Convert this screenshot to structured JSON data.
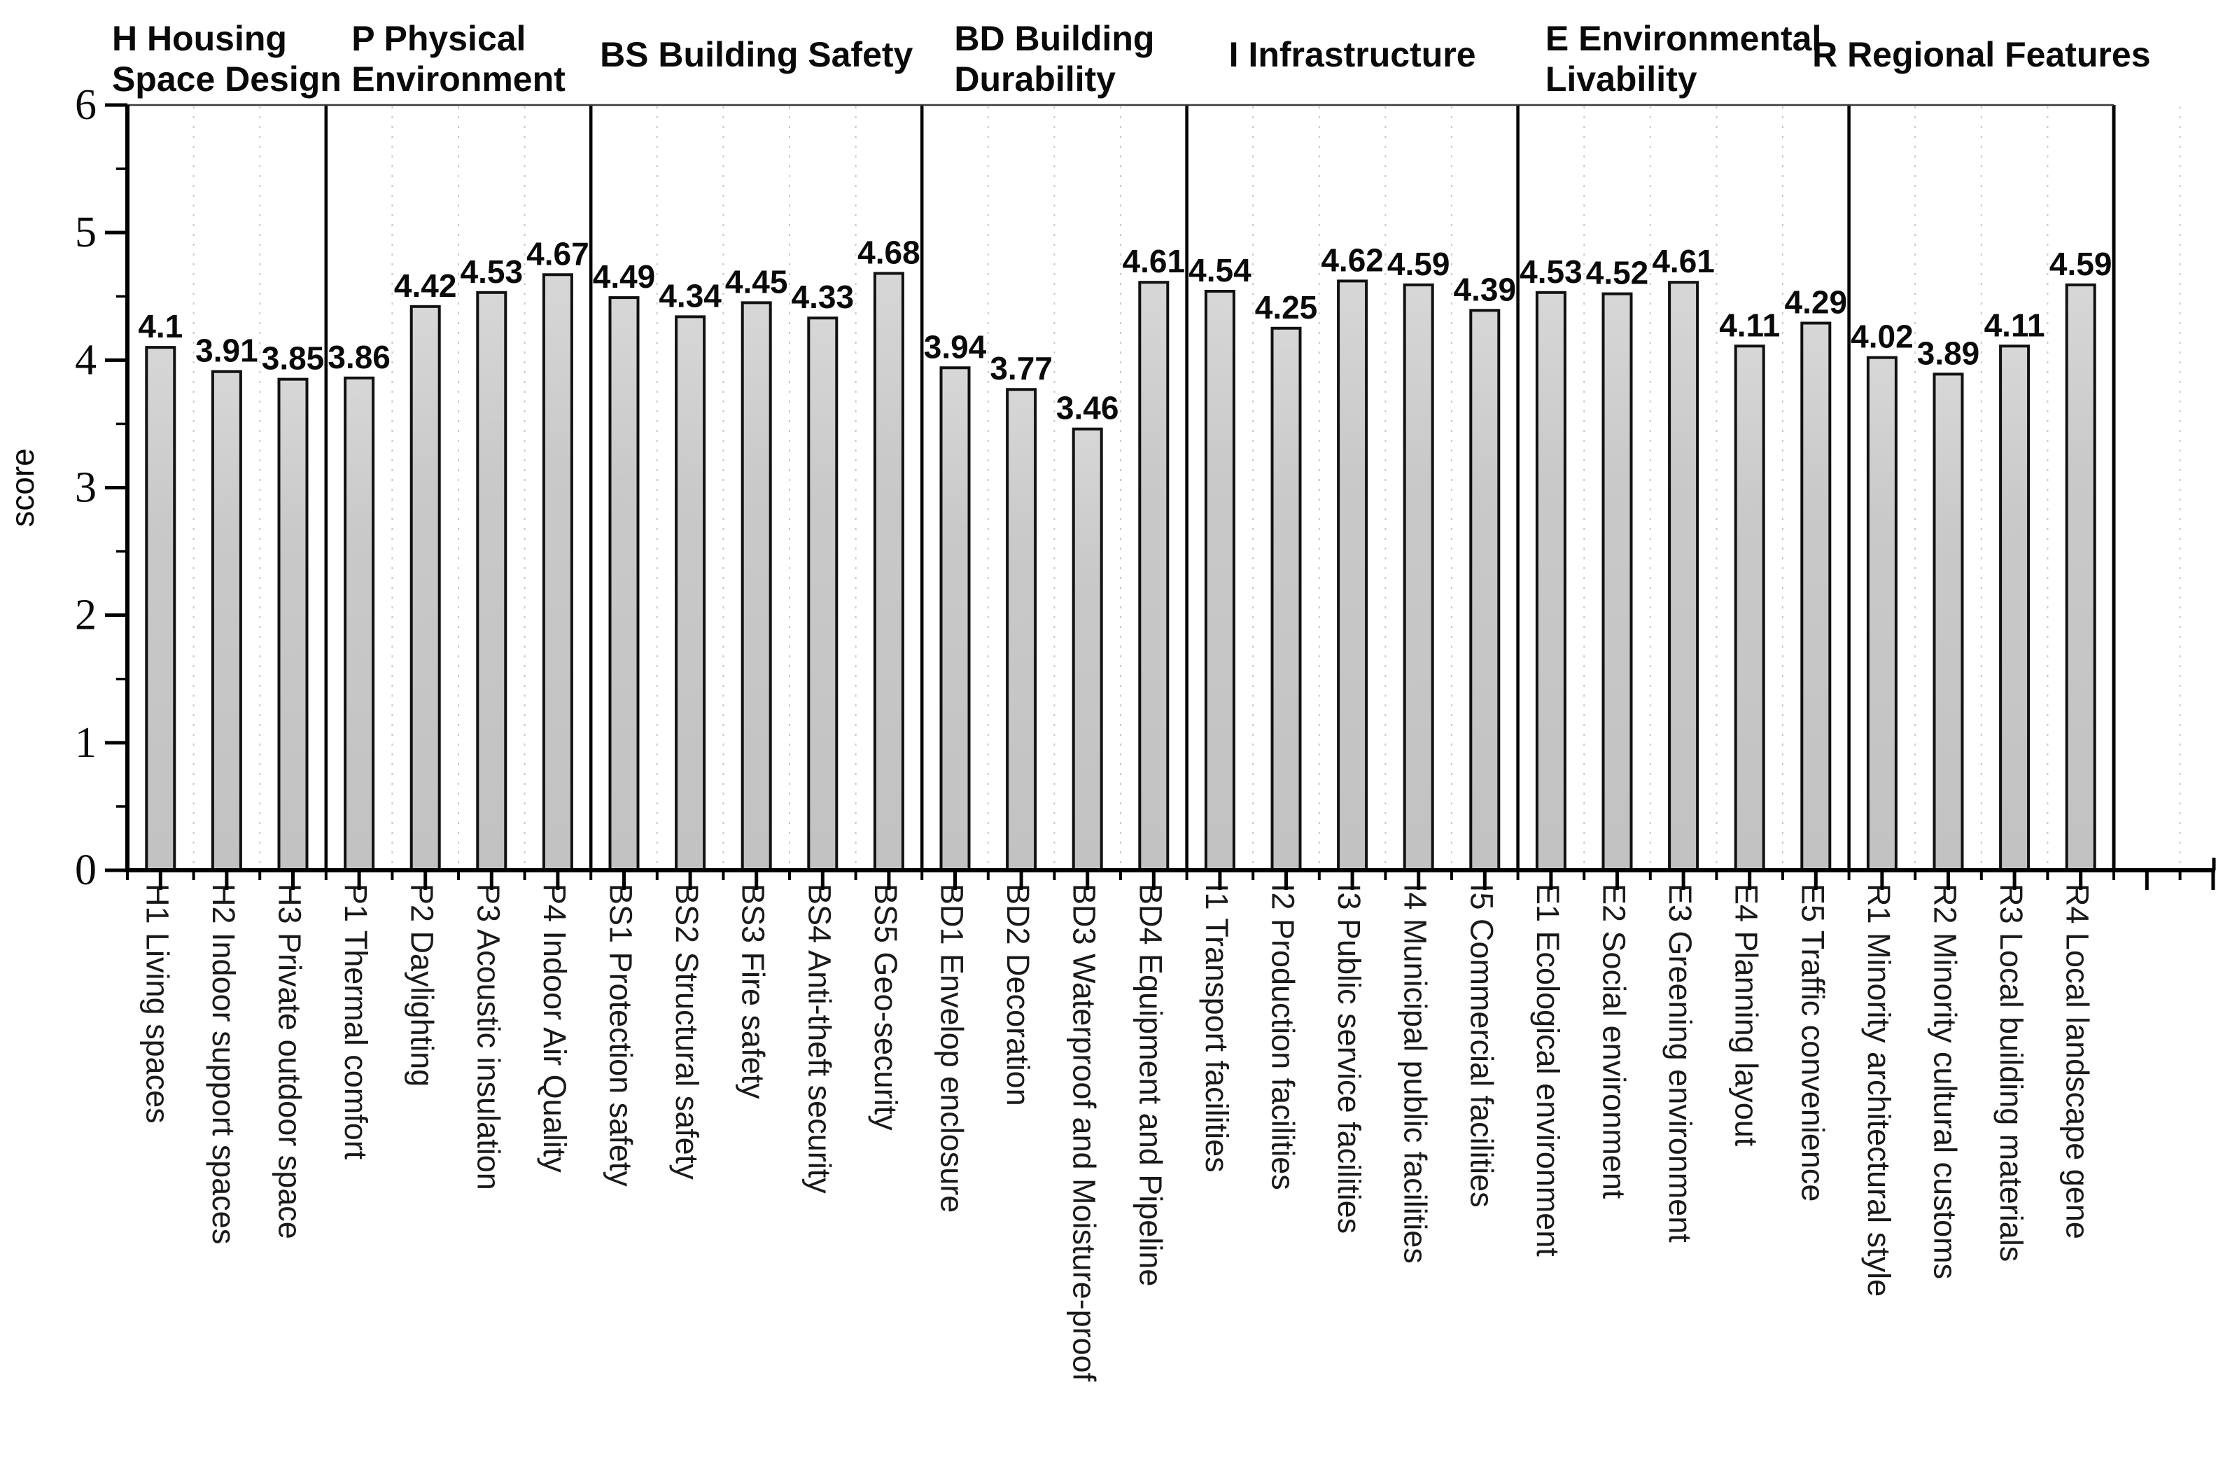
{
  "chart_data": {
    "type": "bar",
    "title": "",
    "ylabel": "score",
    "ylim": [
      0,
      6
    ],
    "yticks": [
      "0",
      "1",
      "2",
      "3",
      "4",
      "5",
      "6"
    ],
    "grid": "vertical-dashed-per-slot",
    "legend": "none",
    "colors": {
      "bar_fill": "#c9c9c9",
      "bar_fill_light": "#d7d7d7",
      "bar_stroke": "#111111",
      "axis": "#000000",
      "frame_top": "#3a3a3a",
      "gridline": "#c9c9c9",
      "text": "#0a0a0a"
    },
    "groups": [
      {
        "name": "H Housing Space Design",
        "header_lines": [
          "H Housing",
          "Space Design"
        ],
        "items": [
          {
            "code": "H1",
            "label": "H1 Living spaces",
            "value": 4.1
          },
          {
            "code": "H2",
            "label": "H2 Indoor support spaces",
            "value": 3.91
          },
          {
            "code": "H3",
            "label": "H3 Private outdoor space",
            "value": 3.85
          }
        ]
      },
      {
        "name": "P Physical Environment",
        "header_lines": [
          "P Physical",
          "Environment"
        ],
        "items": [
          {
            "code": "P1",
            "label": "P1 Thermal comfort",
            "value": 3.86
          },
          {
            "code": "P2",
            "label": "P2 Daylighting",
            "value": 4.42
          },
          {
            "code": "P3",
            "label": "P3 Acoustic insulation",
            "value": 4.53
          },
          {
            "code": "P4",
            "label": "P4 Indoor Air Quality",
            "value": 4.67
          }
        ]
      },
      {
        "name": "BS Building Safety",
        "header_lines": [
          "BS Building Safety"
        ],
        "items": [
          {
            "code": "BS1",
            "label": "BS1 Protection safety",
            "value": 4.49
          },
          {
            "code": "BS2",
            "label": "BS2 Structural safety",
            "value": 4.34
          },
          {
            "code": "BS3",
            "label": "BS3 Fire safety",
            "value": 4.45
          },
          {
            "code": "BS4",
            "label": "BS4 Anti-theft security",
            "value": 4.33
          },
          {
            "code": "BS5",
            "label": "BS5 Geo-security",
            "value": 4.68
          }
        ]
      },
      {
        "name": "BD Building Durability",
        "header_lines": [
          "BD Building",
          "Durability"
        ],
        "items": [
          {
            "code": "BD1",
            "label": "BD1 Envelop enclosure",
            "value": 3.94
          },
          {
            "code": "BD2",
            "label": "BD2 Decoration",
            "value": 3.77
          },
          {
            "code": "BD3",
            "label": "BD3 Waterproof and Moisture-proof",
            "value": 3.46
          },
          {
            "code": "BD4",
            "label": "BD4 Equipment and Pipeline",
            "value": 4.61
          }
        ]
      },
      {
        "name": "I Infrastructure",
        "header_lines": [
          "I Infrastructure"
        ],
        "items": [
          {
            "code": "I1",
            "label": "I1 Transport facilities",
            "value": 4.54
          },
          {
            "code": "I2",
            "label": "I2 Production facilities",
            "value": 4.25
          },
          {
            "code": "I3",
            "label": "I3 Public service facilities",
            "value": 4.62
          },
          {
            "code": "I4",
            "label": "I4 Municipal public facilities",
            "value": 4.59
          },
          {
            "code": "I5",
            "label": "I5 Commercial facilities",
            "value": 4.39
          }
        ]
      },
      {
        "name": "E Environmental Livability",
        "header_lines": [
          "E Environmental",
          "Livability"
        ],
        "items": [
          {
            "code": "E1",
            "label": "E1 Ecological environment",
            "value": 4.53
          },
          {
            "code": "E2",
            "label": "E2 Social environment",
            "value": 4.52
          },
          {
            "code": "E3",
            "label": "E3 Greening environment",
            "value": 4.61
          },
          {
            "code": "E4",
            "label": "E4 Planning layout",
            "value": 4.11
          },
          {
            "code": "E5",
            "label": "E5 Traffic convenience",
            "value": 4.29
          }
        ]
      },
      {
        "name": "R Regional Features",
        "header_lines": [
          "R Regional Features"
        ],
        "items": [
          {
            "code": "R1",
            "label": "R1 Minority architectural style",
            "value": 4.02
          },
          {
            "code": "R2",
            "label": "R2 Minority cultural customs",
            "value": 3.89
          },
          {
            "code": "R3",
            "label": "R3 Local building materials",
            "value": 4.11
          },
          {
            "code": "R4",
            "label": "R4 Local landscape gene",
            "value": 4.59
          }
        ]
      }
    ]
  }
}
